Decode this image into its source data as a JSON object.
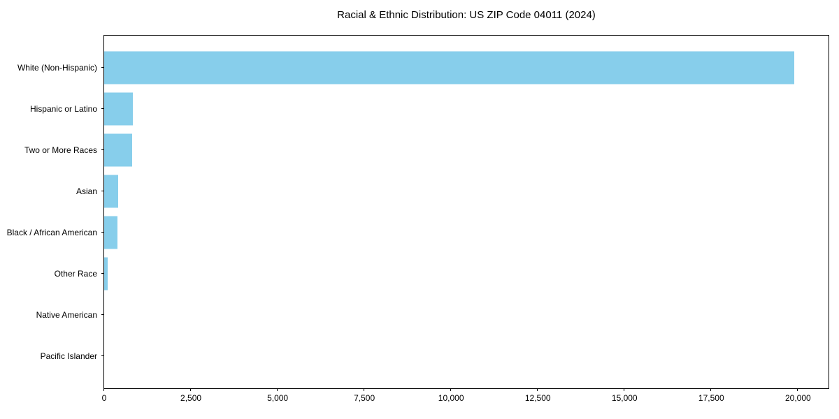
{
  "chart_data": {
    "type": "bar",
    "orientation": "horizontal",
    "title": "Racial & Ethnic Distribution: US ZIP Code 04011 (2024)",
    "xlabel": "",
    "ylabel": "",
    "categories": [
      "White (Non-Hispanic)",
      "Hispanic or Latino",
      "Two or More Races",
      "Asian",
      "Black / African American",
      "Other Race",
      "Native American",
      "Pacific Islander"
    ],
    "values": [
      19890,
      830,
      810,
      400,
      390,
      100,
      0,
      0
    ],
    "xlim": [
      0,
      20880
    ],
    "xticks": [
      0,
      2500,
      5000,
      7500,
      10000,
      12500,
      15000,
      17500,
      20000
    ],
    "xtick_labels": [
      "0",
      "2,500",
      "5,000",
      "7,500",
      "10,000",
      "12,500",
      "15,000",
      "17,500",
      "20,000"
    ],
    "bar_color": "#87CEEB",
    "grid": false,
    "legend_position": "none",
    "background_color": "#ffffff",
    "spine_color": "#000000"
  }
}
